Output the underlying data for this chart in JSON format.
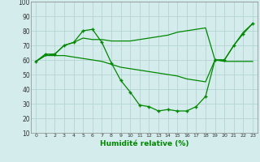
{
  "xlabel": "Humidité relative (%)",
  "bg_color": "#d4ecec",
  "grid_color": "#b0d0d0",
  "line_color": "#008800",
  "xlim": [
    -0.5,
    23.5
  ],
  "ylim": [
    10,
    100
  ],
  "yticks": [
    10,
    20,
    30,
    40,
    50,
    60,
    70,
    80,
    90,
    100
  ],
  "xticks": [
    0,
    1,
    2,
    3,
    4,
    5,
    6,
    7,
    8,
    9,
    10,
    11,
    12,
    13,
    14,
    15,
    16,
    17,
    18,
    19,
    20,
    21,
    22,
    23
  ],
  "line_upper": {
    "x": [
      0,
      1,
      2,
      3,
      4,
      5,
      6,
      7,
      8,
      9,
      10,
      11,
      12,
      13,
      14,
      15,
      16,
      17,
      18,
      19,
      20,
      21,
      22,
      23
    ],
    "y": [
      59,
      63,
      64,
      70,
      72,
      75,
      74,
      74,
      73,
      73,
      73,
      74,
      75,
      76,
      77,
      79,
      80,
      81,
      82,
      60,
      60,
      70,
      79,
      85
    ]
  },
  "line_diag": {
    "x": [
      0,
      1,
      2,
      3,
      4,
      5,
      6,
      7,
      8,
      9,
      10,
      11,
      12,
      13,
      14,
      15,
      16,
      17,
      18,
      19,
      20,
      21,
      22,
      23
    ],
    "y": [
      59,
      63,
      63,
      63,
      62,
      61,
      60,
      59,
      57,
      55,
      54,
      53,
      52,
      51,
      50,
      49,
      47,
      46,
      45,
      60,
      59,
      59,
      59,
      59
    ]
  },
  "line_markers": {
    "x": [
      0,
      1,
      2,
      3,
      4,
      5,
      6,
      7,
      8,
      9,
      10,
      11,
      12,
      13,
      14,
      15,
      16,
      17,
      18,
      19,
      20,
      21,
      22,
      23
    ],
    "y": [
      59,
      64,
      64,
      70,
      72,
      80,
      81,
      72,
      58,
      46,
      38,
      29,
      28,
      25,
      26,
      25,
      25,
      28,
      35,
      60,
      60,
      70,
      78,
      85
    ]
  }
}
